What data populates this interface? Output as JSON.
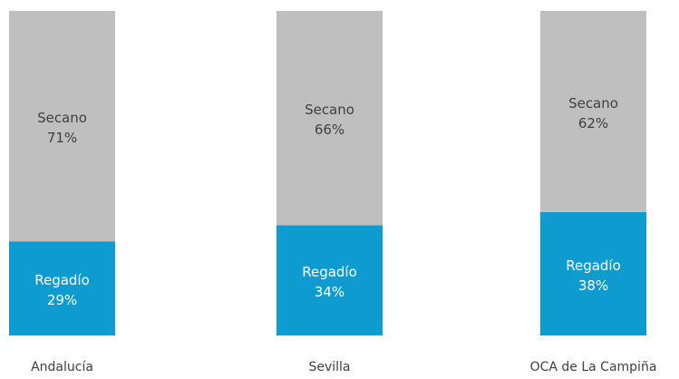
{
  "chart_data": {
    "type": "bar",
    "stacked": true,
    "normalized": true,
    "categories": [
      "Andalucía",
      "Sevilla",
      "OCA de La Campiña"
    ],
    "series": [
      {
        "name": "Regadío",
        "values": [
          29,
          34,
          38
        ],
        "labels": [
          "29%",
          "34%",
          "38%"
        ],
        "color": "#0e9bcf",
        "text_color": "#ffffff"
      },
      {
        "name": "Secano",
        "values": [
          71,
          66,
          62
        ],
        "labels": [
          "71%",
          "66%",
          "62%"
        ],
        "color": "#bfbfbf",
        "text_color": "#404040"
      }
    ],
    "title": "",
    "xlabel": "",
    "ylabel": "",
    "ylim": [
      0,
      100
    ],
    "grid": false,
    "legend": "none"
  }
}
